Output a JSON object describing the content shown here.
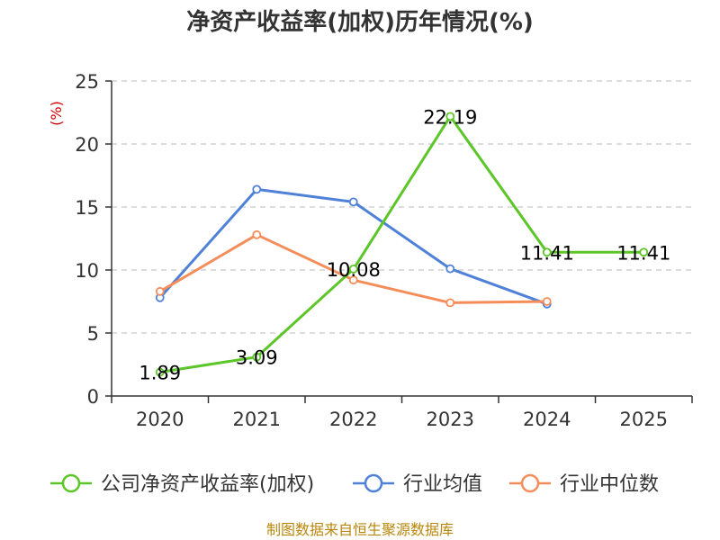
{
  "chart_data": {
    "type": "line",
    "title": "净资产收益率(加权)历年情况(%)",
    "ylabel": "(%)",
    "xlabel": "",
    "categories": [
      "2020",
      "2021",
      "2022",
      "2023",
      "2024",
      "2025"
    ],
    "ylim": [
      0,
      25
    ],
    "yticks": [
      0,
      5,
      10,
      15,
      20,
      25
    ],
    "grid": true,
    "legend_position": "bottom",
    "series": [
      {
        "name": "公司净资产收益率(加权)",
        "color": "#5cc628",
        "values": [
          1.89,
          3.09,
          10.08,
          22.19,
          11.41,
          11.41
        ],
        "labels": [
          "1.89",
          "3.09",
          "10.08",
          "22.19",
          "11.41",
          "11.41"
        ]
      },
      {
        "name": "行业均值",
        "color": "#4f81d9",
        "values": [
          7.8,
          16.4,
          15.4,
          10.1,
          7.3,
          null
        ]
      },
      {
        "name": "行业中位数",
        "color": "#f58d5b",
        "values": [
          8.3,
          12.8,
          9.2,
          7.4,
          7.5,
          null
        ]
      }
    ],
    "source": "制图数据来自恒生聚源数据库"
  }
}
